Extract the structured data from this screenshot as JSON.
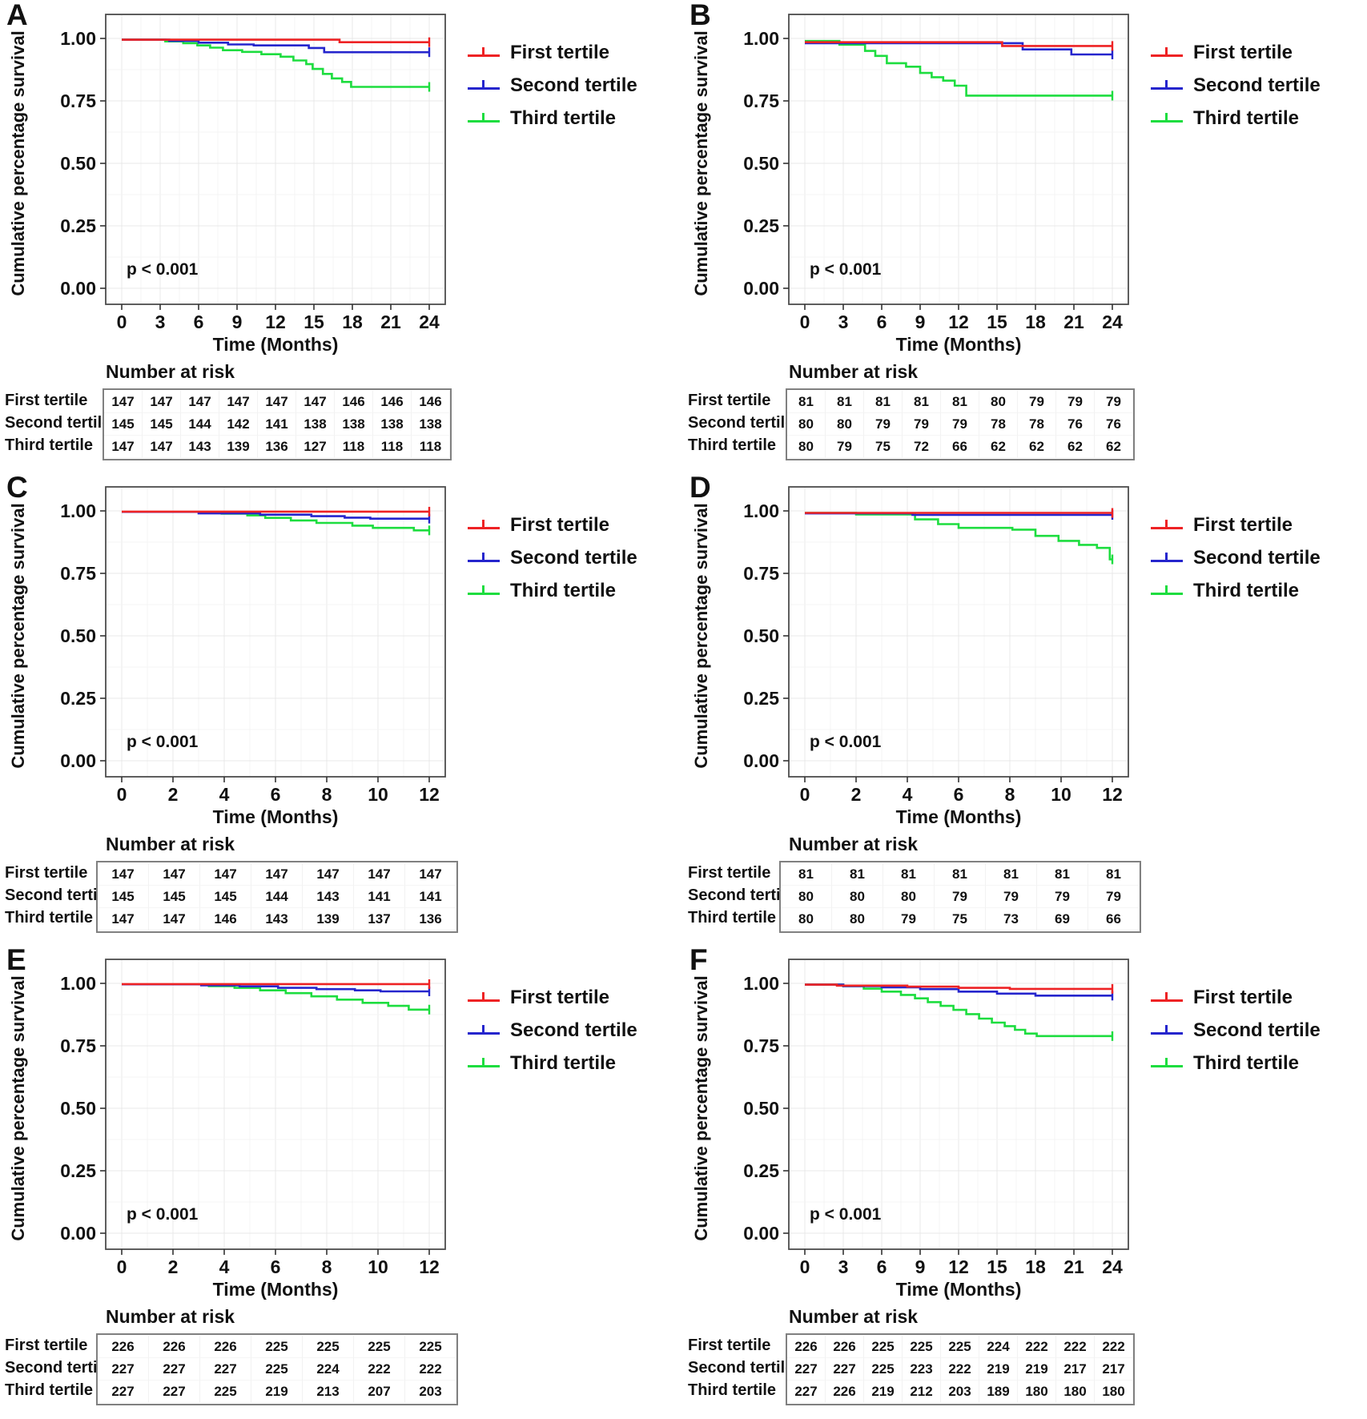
{
  "figure": {
    "ylabel": "Cumulative percentage survival",
    "xlabel": "Time (Months)",
    "risk_header": "Number at risk",
    "p_label": "p < 0.001",
    "y_tick_labels": [
      "1.00",
      "0.75",
      "0.50",
      "0.25",
      "0.00"
    ],
    "colors": {
      "first_tertile": "#ee2224",
      "second_tertile": "#2525cd",
      "third_tertile": "#1ddd3f"
    },
    "legend": [
      "First tertile",
      "Second tertile",
      "Third tertile"
    ]
  },
  "chart_data": [
    {
      "type": "line",
      "panel": "A",
      "xlabel": "Time (Months)",
      "ylabel": "Cumulative percentage survival",
      "annotation": "p < 0.001",
      "ylim": [
        0,
        1
      ],
      "x_ticks": [
        0,
        3,
        6,
        9,
        12,
        15,
        18,
        21,
        24
      ],
      "series": [
        {
          "name": "First tertile",
          "color": "#ee2224",
          "start": 0.995,
          "drops": [
            [
              17,
              0.985
            ]
          ]
        },
        {
          "name": "Second tertile",
          "color": "#2525cd",
          "start": 0.995,
          "drops": [
            [
              3.7,
              0.99
            ],
            [
              6.0,
              0.983
            ],
            [
              8.3,
              0.976
            ],
            [
              10.3,
              0.972
            ],
            [
              14.6,
              0.962
            ],
            [
              15.8,
              0.945
            ]
          ]
        },
        {
          "name": "Third tertile",
          "color": "#1ddd3f",
          "start": 0.995,
          "drops": [
            [
              3.4,
              0.988
            ],
            [
              4.8,
              0.981
            ],
            [
              5.9,
              0.972
            ],
            [
              6.9,
              0.963
            ],
            [
              7.9,
              0.953
            ],
            [
              9.4,
              0.946
            ],
            [
              10.9,
              0.937
            ],
            [
              12.4,
              0.927
            ],
            [
              13.4,
              0.912
            ],
            [
              14.4,
              0.897
            ],
            [
              14.9,
              0.878
            ],
            [
              15.7,
              0.858
            ],
            [
              16.4,
              0.84
            ],
            [
              17.2,
              0.826
            ],
            [
              17.9,
              0.806
            ]
          ]
        }
      ],
      "number_at_risk": [
        {
          "label": "First tertile",
          "values": [
            147,
            147,
            147,
            147,
            147,
            147,
            146,
            146,
            146
          ]
        },
        {
          "label": "Second tertile",
          "values": [
            145,
            145,
            144,
            142,
            141,
            138,
            138,
            138,
            138
          ]
        },
        {
          "label": "Third tertile",
          "values": [
            147,
            147,
            143,
            139,
            136,
            127,
            118,
            118,
            118
          ]
        }
      ]
    },
    {
      "type": "line",
      "panel": "B",
      "xlabel": "Time (Months)",
      "ylabel": "Cumulative percentage survival",
      "annotation": "p < 0.001",
      "ylim": [
        0,
        1
      ],
      "x_ticks": [
        0,
        3,
        6,
        9,
        12,
        15,
        18,
        21,
        24
      ],
      "series": [
        {
          "name": "First tertile",
          "color": "#ee2224",
          "start": 0.985,
          "drops": [
            [
              15.4,
              0.97
            ]
          ]
        },
        {
          "name": "Second tertile",
          "color": "#2525cd",
          "start": 0.981,
          "drops": [
            [
              17.0,
              0.956
            ],
            [
              20.8,
              0.936
            ]
          ]
        },
        {
          "name": "Third tertile",
          "color": "#1ddd3f",
          "start": 0.99,
          "drops": [
            [
              2.7,
              0.975
            ],
            [
              4.7,
              0.95
            ],
            [
              5.5,
              0.93
            ],
            [
              6.4,
              0.901
            ],
            [
              7.9,
              0.887
            ],
            [
              9.0,
              0.862
            ],
            [
              9.9,
              0.845
            ],
            [
              10.8,
              0.831
            ],
            [
              11.7,
              0.811
            ],
            [
              12.6,
              0.771
            ]
          ]
        }
      ],
      "number_at_risk": [
        {
          "label": "First tertile",
          "values": [
            81,
            81,
            81,
            81,
            81,
            80,
            79,
            79,
            79
          ]
        },
        {
          "label": "Second tertile",
          "values": [
            80,
            80,
            79,
            79,
            79,
            78,
            78,
            76,
            76
          ]
        },
        {
          "label": "Third tertile",
          "values": [
            80,
            79,
            75,
            72,
            66,
            62,
            62,
            62,
            62
          ]
        }
      ]
    },
    {
      "type": "line",
      "panel": "C",
      "xlabel": "Time (Months)",
      "ylabel": "Cumulative percentage survival",
      "annotation": "p < 0.001",
      "ylim": [
        0,
        1
      ],
      "x_ticks": [
        0,
        2,
        4,
        6,
        8,
        10,
        12
      ],
      "series": [
        {
          "name": "First tertile",
          "color": "#ee2224",
          "start": 0.997,
          "drops": []
        },
        {
          "name": "Second tertile",
          "color": "#2525cd",
          "start": 0.996,
          "drops": [
            [
              3.0,
              0.99
            ],
            [
              5.4,
              0.985
            ],
            [
              7.4,
              0.979
            ],
            [
              8.7,
              0.973
            ],
            [
              9.7,
              0.969
            ]
          ]
        },
        {
          "name": "Third tertile",
          "color": "#1ddd3f",
          "start": 0.996,
          "drops": [
            [
              3.9,
              0.989
            ],
            [
              4.9,
              0.982
            ],
            [
              5.6,
              0.972
            ],
            [
              6.6,
              0.962
            ],
            [
              7.6,
              0.952
            ],
            [
              9.0,
              0.941
            ],
            [
              9.8,
              0.932
            ],
            [
              11.4,
              0.922
            ]
          ]
        }
      ],
      "number_at_risk": [
        {
          "label": "First tertile",
          "values": [
            147,
            147,
            147,
            147,
            147,
            147,
            147
          ]
        },
        {
          "label": "Second tertile",
          "values": [
            145,
            145,
            145,
            144,
            143,
            141,
            141
          ]
        },
        {
          "label": "Third tertile",
          "values": [
            147,
            147,
            146,
            143,
            139,
            137,
            136
          ]
        }
      ]
    },
    {
      "type": "line",
      "panel": "D",
      "xlabel": "Time (Months)",
      "ylabel": "Cumulative percentage survival",
      "annotation": "p < 0.001",
      "ylim": [
        0,
        1
      ],
      "x_ticks": [
        0,
        2,
        4,
        6,
        8,
        10,
        12
      ],
      "series": [
        {
          "name": "First tertile",
          "color": "#ee2224",
          "start": 0.992,
          "drops": []
        },
        {
          "name": "Second tertile",
          "color": "#2525cd",
          "start": 0.99,
          "drops": [
            [
              4.2,
              0.984
            ]
          ]
        },
        {
          "name": "Third tertile",
          "color": "#1ddd3f",
          "start": 0.992,
          "drops": [
            [
              2.0,
              0.986
            ],
            [
              4.3,
              0.966
            ],
            [
              5.2,
              0.947
            ],
            [
              6.0,
              0.932
            ],
            [
              8.1,
              0.925
            ],
            [
              9.0,
              0.9
            ],
            [
              9.9,
              0.88
            ],
            [
              10.7,
              0.864
            ],
            [
              11.4,
              0.852
            ],
            [
              11.9,
              0.806
            ]
          ]
        }
      ],
      "number_at_risk": [
        {
          "label": "First tertile",
          "values": [
            81,
            81,
            81,
            81,
            81,
            81,
            81
          ]
        },
        {
          "label": "Second tertile",
          "values": [
            80,
            80,
            80,
            79,
            79,
            79,
            79
          ]
        },
        {
          "label": "Third tertile",
          "values": [
            80,
            80,
            79,
            75,
            73,
            69,
            66
          ]
        }
      ]
    },
    {
      "type": "line",
      "panel": "E",
      "xlabel": "Time (Months)",
      "ylabel": "Cumulative percentage survival",
      "annotation": "p < 0.001",
      "ylim": [
        0,
        1
      ],
      "x_ticks": [
        0,
        2,
        4,
        6,
        8,
        10,
        12
      ],
      "series": [
        {
          "name": "First tertile",
          "color": "#ee2224",
          "start": 0.997,
          "drops": []
        },
        {
          "name": "Second tertile",
          "color": "#2525cd",
          "start": 0.996,
          "drops": [
            [
              3.1,
              0.992
            ],
            [
              4.6,
              0.988
            ],
            [
              6.1,
              0.982
            ],
            [
              7.6,
              0.977
            ],
            [
              9.1,
              0.972
            ],
            [
              10.1,
              0.968
            ]
          ]
        },
        {
          "name": "Third tertile",
          "color": "#1ddd3f",
          "start": 0.996,
          "drops": [
            [
              3.4,
              0.989
            ],
            [
              4.4,
              0.982
            ],
            [
              5.4,
              0.972
            ],
            [
              6.4,
              0.961
            ],
            [
              7.4,
              0.948
            ],
            [
              8.4,
              0.935
            ],
            [
              9.4,
              0.922
            ],
            [
              10.4,
              0.91
            ],
            [
              11.2,
              0.895
            ]
          ]
        }
      ],
      "number_at_risk": [
        {
          "label": "First tertile",
          "values": [
            226,
            226,
            226,
            225,
            225,
            225,
            225
          ]
        },
        {
          "label": "Second tertile",
          "values": [
            227,
            227,
            227,
            225,
            224,
            222,
            222
          ]
        },
        {
          "label": "Third tertile",
          "values": [
            227,
            227,
            225,
            219,
            213,
            207,
            203
          ]
        }
      ]
    },
    {
      "type": "line",
      "panel": "F",
      "xlabel": "Time (Months)",
      "ylabel": "Cumulative percentage survival",
      "annotation": "p < 0.001",
      "ylim": [
        0,
        1
      ],
      "x_ticks": [
        0,
        3,
        6,
        9,
        12,
        15,
        18,
        21,
        24
      ],
      "series": [
        {
          "name": "First tertile",
          "color": "#ee2224",
          "start": 0.995,
          "drops": [
            [
              2.5,
              0.991
            ],
            [
              8.0,
              0.987
            ],
            [
              12.0,
              0.982
            ],
            [
              16.0,
              0.978
            ]
          ]
        },
        {
          "name": "Second tertile",
          "color": "#2525cd",
          "start": 0.995,
          "drops": [
            [
              3.0,
              0.989
            ],
            [
              6.0,
              0.984
            ],
            [
              9.0,
              0.977
            ],
            [
              12.0,
              0.967
            ],
            [
              15.0,
              0.959
            ],
            [
              18.0,
              0.951
            ]
          ]
        },
        {
          "name": "Third tertile",
          "color": "#1ddd3f",
          "start": 0.995,
          "drops": [
            [
              3.0,
              0.989
            ],
            [
              4.6,
              0.979
            ],
            [
              6.0,
              0.967
            ],
            [
              7.5,
              0.954
            ],
            [
              8.6,
              0.94
            ],
            [
              9.6,
              0.925
            ],
            [
              10.6,
              0.91
            ],
            [
              11.6,
              0.894
            ],
            [
              12.6,
              0.877
            ],
            [
              13.6,
              0.859
            ],
            [
              14.6,
              0.843
            ],
            [
              15.6,
              0.829
            ],
            [
              16.4,
              0.814
            ],
            [
              17.2,
              0.799
            ],
            [
              18.1,
              0.789
            ]
          ]
        }
      ],
      "number_at_risk": [
        {
          "label": "First tertile",
          "values": [
            226,
            226,
            225,
            225,
            225,
            224,
            222,
            222,
            222
          ]
        },
        {
          "label": "Second tertile",
          "values": [
            227,
            227,
            225,
            223,
            222,
            219,
            219,
            217,
            217
          ]
        },
        {
          "label": "Third tertile",
          "values": [
            227,
            226,
            219,
            212,
            203,
            189,
            180,
            180,
            180
          ]
        }
      ]
    }
  ]
}
